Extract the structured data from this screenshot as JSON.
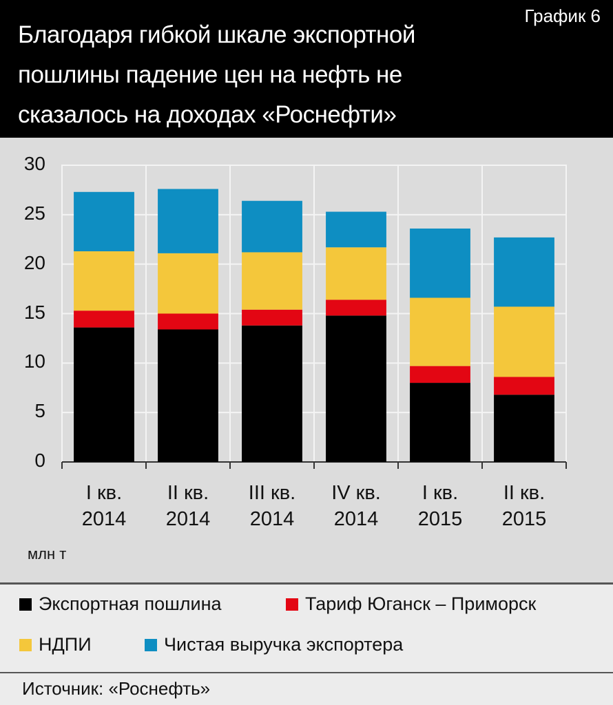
{
  "chart_data": {
    "type": "stacked_bar",
    "label": "График 6",
    "title": "Благодаря гибкой шкале экспортной пошлины падение цен на нефть не сказалось на доходах «Роснефти»",
    "categories": [
      "I кв. 2014",
      "II кв. 2014",
      "III кв. 2014",
      "IV кв. 2014",
      "I кв. 2015",
      "II кв. 2015"
    ],
    "series": [
      {
        "name": "Экспортная пошлина",
        "color": "#000000",
        "values": [
          13.6,
          13.4,
          13.8,
          14.8,
          8.0,
          6.8
        ]
      },
      {
        "name": "Тариф Юганск – Приморск",
        "color": "#e30613",
        "values": [
          1.7,
          1.6,
          1.6,
          1.6,
          1.7,
          1.8
        ]
      },
      {
        "name": "НДПИ",
        "color": "#f4c73b",
        "values": [
          6.0,
          6.1,
          5.8,
          5.3,
          6.9,
          7.1
        ]
      },
      {
        "name": "Чистая выручка экспортера",
        "color": "#0e8ec2",
        "values": [
          6.0,
          6.5,
          5.2,
          3.6,
          7.0,
          7.0
        ]
      }
    ],
    "ylim": [
      0,
      30
    ],
    "yticks": [
      0,
      5,
      10,
      15,
      20,
      25,
      30
    ],
    "y_unit": "млн т",
    "grid": true,
    "source": "Источник: «Роснефть»"
  }
}
